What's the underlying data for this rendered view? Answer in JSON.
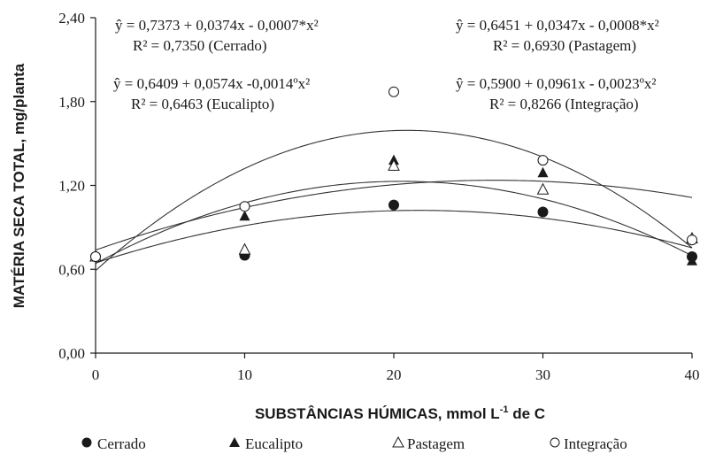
{
  "chart_data": {
    "type": "scatter",
    "xlabel_main": "SUBSTÂNCIAS HÚMICAS, mmol L",
    "xlabel_sup": "-1",
    "xlabel_end": " de C",
    "ylabel": "MATÉRIA SECA TOTAL, mg/planta",
    "x_ticks": [
      "0",
      "10",
      "20",
      "30",
      "40"
    ],
    "y_ticks": [
      "0,00",
      "0,60",
      "1,20",
      "1,80",
      "2,40"
    ],
    "xlim": [
      0,
      40
    ],
    "ylim": [
      0,
      2.4
    ],
    "x": [
      0,
      10,
      20,
      30,
      40
    ],
    "series": [
      {
        "name": "Cerrado",
        "marker": "filled-circle",
        "values": [
          0.69,
          0.7,
          1.06,
          1.01,
          0.69
        ],
        "fit": [
          0.7373,
          0.0374,
          -0.0007
        ],
        "equation": "ŷ = 0,7373 + 0,0374x - 0,0007*x²",
        "r2": "R² = 0,7350 (Cerrado)"
      },
      {
        "name": "Eucalipto",
        "marker": "filled-triangle",
        "values": [
          0.69,
          0.98,
          1.38,
          1.29,
          0.66
        ],
        "fit": [
          0.6409,
          0.0574,
          -0.0014
        ],
        "equation": "ŷ = 0,6409 + 0,0574x -0,0014ºx²",
        "r2": "R² = 0,6463 (Eucalipto)"
      },
      {
        "name": "Pastagem",
        "marker": "open-triangle",
        "values": [
          0.69,
          0.74,
          1.34,
          1.17,
          0.82
        ],
        "fit": [
          0.6451,
          0.0347,
          -0.0008
        ],
        "equation": "ŷ = 0,6451 + 0,0347x - 0,0008*x²",
        "r2": "R² = 0,6930 (Pastagem)"
      },
      {
        "name": "Integração",
        "marker": "open-circle",
        "values": [
          0.69,
          1.05,
          1.87,
          1.38,
          0.81
        ],
        "fit": [
          0.59,
          0.0961,
          -0.0023
        ],
        "equation": "ŷ = 0,5900 + 0,0961x - 0,0023ºx²",
        "r2": "R² = 0,8266 (Integração)"
      }
    ],
    "legend": [
      "Cerrado",
      "Eucalipto",
      "Pastagem",
      "Integração"
    ],
    "legend_position": "bottom",
    "grid": false
  }
}
